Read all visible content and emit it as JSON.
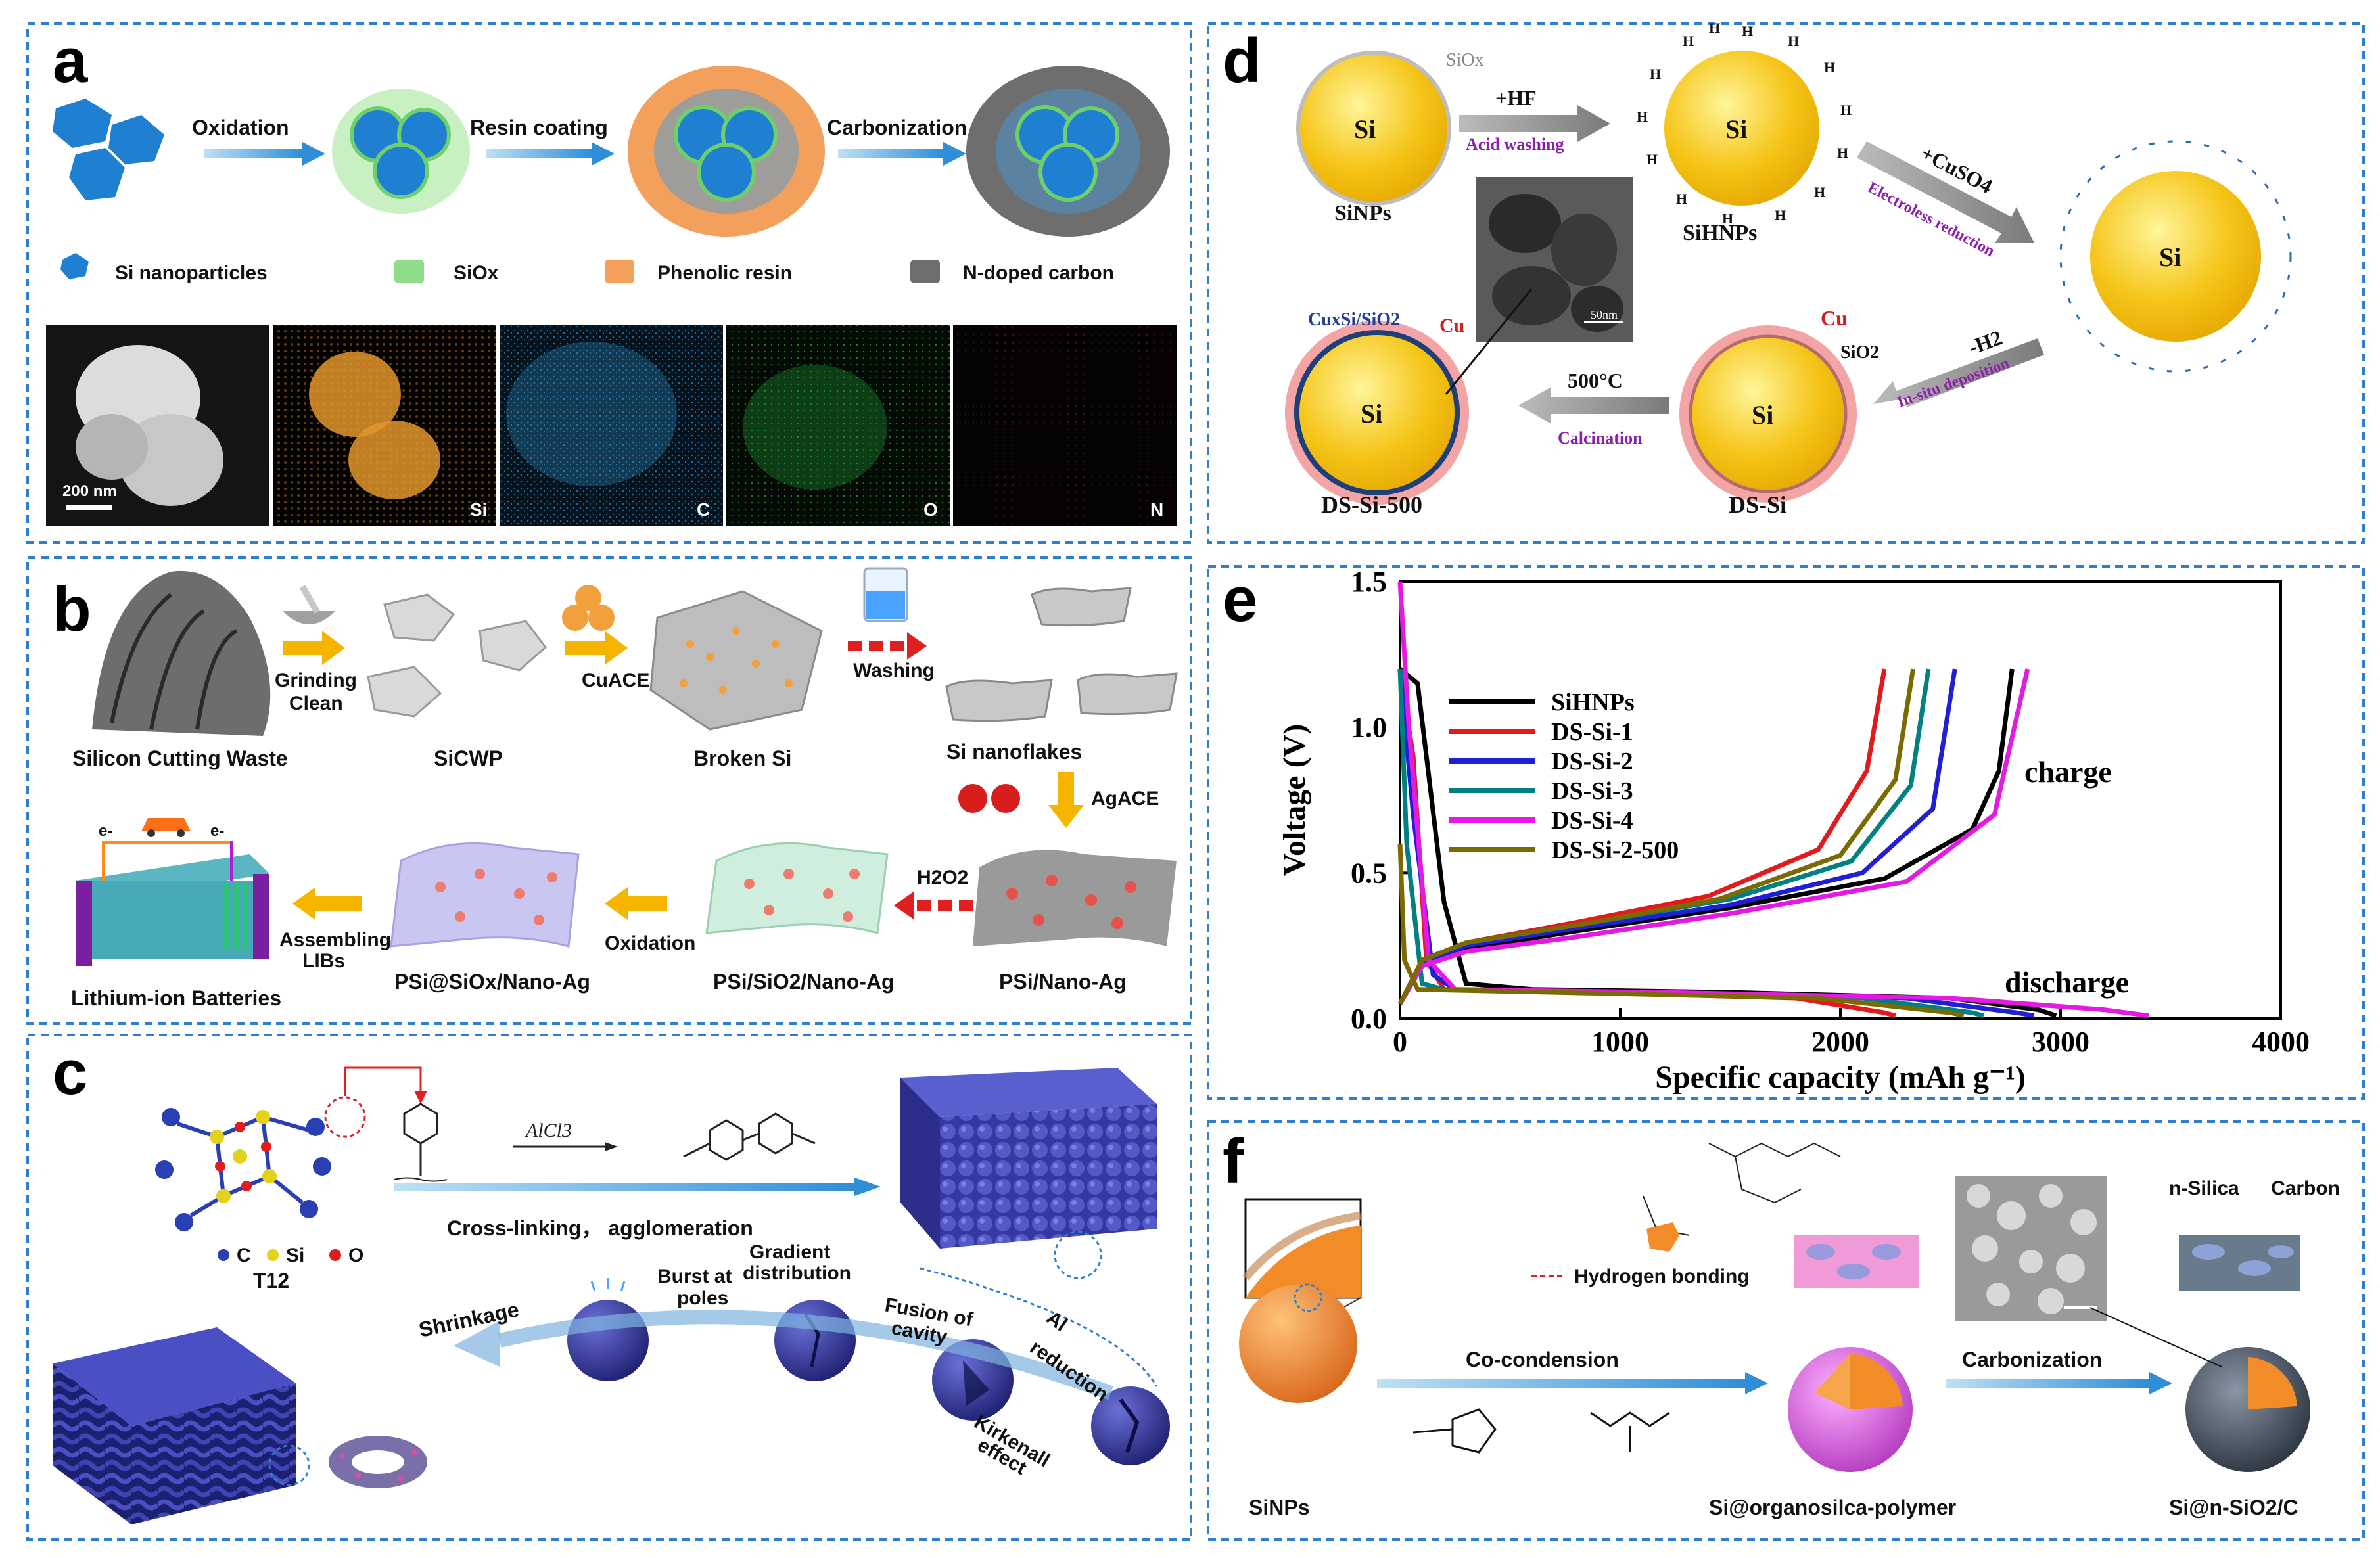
{
  "panels": {
    "a": {
      "letter": "a",
      "steps": [
        "Oxidation",
        "Resin coating",
        "Carbonization"
      ],
      "legend": [
        "Si nanoparticles",
        "SiOx",
        "Phenolic resin",
        "N-doped carbon"
      ],
      "scale_bar": "200 nm",
      "maps": [
        "Si",
        "C",
        "O",
        "N"
      ],
      "colors": {
        "si": "#1f7fd1",
        "siox": "#8fdc8a",
        "resin": "#f2a05c",
        "carbon": "#6e6e6e"
      }
    },
    "b": {
      "letter": "b",
      "nodes": [
        "Silicon Cutting Waste",
        "SiCWP",
        "Broken Si",
        "Si nanoflakes",
        "PSi/Nano-Ag",
        "PSi/SiO2/Nano-Ag",
        "PSi@SiOx/Nano-Ag",
        "Lithium-ion Batteries"
      ],
      "arrows": [
        "Grinding",
        "Clean",
        "CuACE",
        "Washing",
        "AgACE",
        "H2O2",
        "Oxidation",
        "Assembling",
        "LIBs"
      ],
      "electron": "e-",
      "colors": {
        "arrow": "#f4b400",
        "washing": "#e02020"
      }
    },
    "c": {
      "letter": "c",
      "reagent": "AlCl3",
      "process": "Cross-linking， agglomeration",
      "atoms": [
        "C",
        "Si",
        "O"
      ],
      "molecule": "T12",
      "stages": [
        "Shrinkage",
        "Burst at",
        "poles",
        "Gradient",
        "distribution",
        "Fusion of",
        "cavity",
        "Al",
        "reduction",
        "Kirkenall",
        "effect"
      ],
      "colors": {
        "particle": "#3b3fa8"
      }
    },
    "d": {
      "letter": "d",
      "labels": [
        "Si",
        "SiOx",
        "+HF",
        "Acid washing",
        "SiNPs",
        "SiHNPs",
        "+CuSO4",
        "Electroless reduction",
        "-H2",
        "In-situ deposition",
        "Cu",
        "SiO2",
        "DS-Si",
        "500°C",
        "Calcination",
        "DS-Si-500",
        "CuxSi/SiO2",
        "50nm"
      ],
      "colors": {
        "core": "#f5c518",
        "purple": "#8b1fa8",
        "red": "#d81b1b"
      }
    },
    "e": {
      "letter": "e",
      "annotations": [
        "charge",
        "discharge"
      ]
    },
    "f": {
      "letter": "f",
      "labels": [
        "SiNPs",
        "Co-condension",
        "Si@organosilca-polymer",
        "Carbonization",
        "Si@n-SiO2/C",
        "Hydrogen bonding",
        "n-Silica",
        "Carbon"
      ],
      "colors": {
        "core": "#f28c28"
      }
    }
  },
  "chart_data": {
    "type": "line",
    "title": "",
    "xlabel": "Specific capacity (mAh g⁻¹)",
    "ylabel": "Voltage (V)",
    "xlim": [
      0,
      4000
    ],
    "ylim": [
      0,
      1.5
    ],
    "xticks": [
      "0",
      "1000",
      "2000",
      "3000",
      "4000"
    ],
    "yticks": [
      "0.0",
      "0.5",
      "1.0",
      "1.5"
    ],
    "legend_position": "top-left",
    "series": [
      {
        "name": "SiHNPs",
        "color": "#000000",
        "discharge": [
          [
            0,
            1.2
          ],
          [
            80,
            1.15
          ],
          [
            200,
            0.4
          ],
          [
            300,
            0.12
          ],
          [
            600,
            0.1
          ],
          [
            1500,
            0.09
          ],
          [
            2500,
            0.07
          ],
          [
            2900,
            0.03
          ],
          [
            2980,
            0.01
          ]
        ],
        "charge": [
          [
            0,
            0.05
          ],
          [
            100,
            0.18
          ],
          [
            300,
            0.24
          ],
          [
            800,
            0.3
          ],
          [
            1500,
            0.38
          ],
          [
            2200,
            0.48
          ],
          [
            2600,
            0.65
          ],
          [
            2720,
            0.85
          ],
          [
            2780,
            1.2
          ]
        ]
      },
      {
        "name": "DS-Si-1",
        "color": "#e31a1c",
        "discharge": [
          [
            0,
            1.2
          ],
          [
            60,
            0.9
          ],
          [
            120,
            0.2
          ],
          [
            200,
            0.1
          ],
          [
            800,
            0.09
          ],
          [
            1800,
            0.07
          ],
          [
            2200,
            0.02
          ],
          [
            2250,
            0.01
          ]
        ],
        "charge": [
          [
            0,
            0.05
          ],
          [
            100,
            0.2
          ],
          [
            300,
            0.26
          ],
          [
            800,
            0.33
          ],
          [
            1400,
            0.42
          ],
          [
            1900,
            0.58
          ],
          [
            2120,
            0.85
          ],
          [
            2200,
            1.2
          ]
        ]
      },
      {
        "name": "DS-Si-2",
        "color": "#1f1fd6",
        "discharge": [
          [
            0,
            1.2
          ],
          [
            60,
            0.7
          ],
          [
            150,
            0.15
          ],
          [
            250,
            0.1
          ],
          [
            1000,
            0.09
          ],
          [
            2300,
            0.07
          ],
          [
            2800,
            0.02
          ],
          [
            2880,
            0.01
          ]
        ],
        "charge": [
          [
            0,
            0.05
          ],
          [
            100,
            0.19
          ],
          [
            300,
            0.25
          ],
          [
            800,
            0.31
          ],
          [
            1500,
            0.39
          ],
          [
            2100,
            0.5
          ],
          [
            2420,
            0.72
          ],
          [
            2520,
            1.2
          ]
        ]
      },
      {
        "name": "DS-Si-3",
        "color": "#008080",
        "discharge": [
          [
            0,
            1.2
          ],
          [
            30,
            0.6
          ],
          [
            100,
            0.12
          ],
          [
            200,
            0.1
          ],
          [
            900,
            0.09
          ],
          [
            2100,
            0.07
          ],
          [
            2600,
            0.02
          ],
          [
            2650,
            0.01
          ]
        ],
        "charge": [
          [
            0,
            0.05
          ],
          [
            100,
            0.2
          ],
          [
            300,
            0.26
          ],
          [
            800,
            0.32
          ],
          [
            1500,
            0.41
          ],
          [
            2050,
            0.54
          ],
          [
            2320,
            0.8
          ],
          [
            2400,
            1.2
          ]
        ]
      },
      {
        "name": "DS-Si-4",
        "color": "#e41ae4",
        "discharge": [
          [
            0,
            1.5
          ],
          [
            40,
            1.0
          ],
          [
            130,
            0.2
          ],
          [
            250,
            0.1
          ],
          [
            1200,
            0.09
          ],
          [
            2500,
            0.07
          ],
          [
            3200,
            0.03
          ],
          [
            3400,
            0.01
          ]
        ],
        "charge": [
          [
            0,
            0.05
          ],
          [
            100,
            0.18
          ],
          [
            300,
            0.23
          ],
          [
            800,
            0.28
          ],
          [
            1500,
            0.36
          ],
          [
            2300,
            0.47
          ],
          [
            2700,
            0.7
          ],
          [
            2850,
            1.2
          ]
        ]
      },
      {
        "name": "DS-Si-2-500",
        "color": "#7a6a00",
        "discharge": [
          [
            0,
            0.6
          ],
          [
            20,
            0.2
          ],
          [
            80,
            0.1
          ],
          [
            700,
            0.09
          ],
          [
            1900,
            0.07
          ],
          [
            2500,
            0.02
          ],
          [
            2560,
            0.01
          ]
        ],
        "charge": [
          [
            0,
            0.05
          ],
          [
            100,
            0.2
          ],
          [
            300,
            0.26
          ],
          [
            800,
            0.32
          ],
          [
            1450,
            0.41
          ],
          [
            2000,
            0.56
          ],
          [
            2250,
            0.82
          ],
          [
            2330,
            1.2
          ]
        ]
      }
    ]
  }
}
